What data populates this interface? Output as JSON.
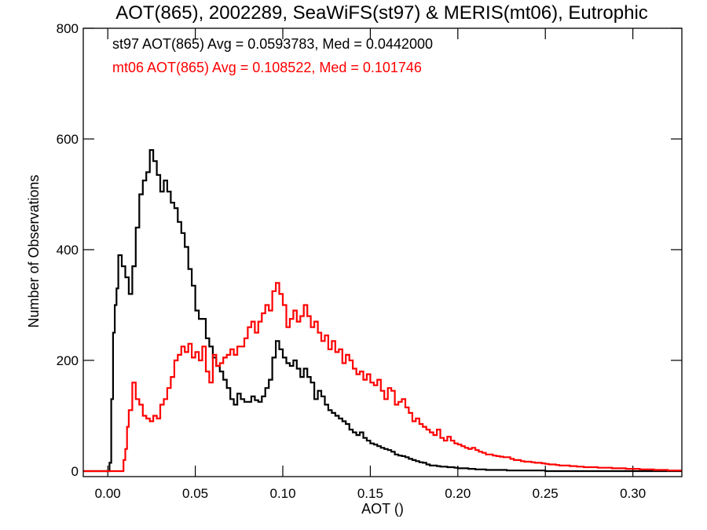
{
  "chart_data": {
    "type": "line",
    "title": "AOT(865), 2002289, SeaWiFS(st97) & MERIS(mt06), Eutrophic",
    "xlabel": "AOT ()",
    "ylabel": "Number of Observations",
    "xlim": [
      -0.014,
      0.328
    ],
    "ylim": [
      -10,
      800
    ],
    "xticks": [
      0.0,
      0.05,
      0.1,
      0.15,
      0.2,
      0.25,
      0.3
    ],
    "xtick_labels": [
      "0.00",
      "0.05",
      "0.10",
      "0.15",
      "0.20",
      "0.25",
      "0.30"
    ],
    "yticks": [
      0,
      200,
      400,
      600,
      800
    ],
    "ytick_labels": [
      "0",
      "200",
      "400",
      "600",
      "800"
    ],
    "grid": false,
    "legend_position": "top-left",
    "series": [
      {
        "name": "st97",
        "legend_text": "st97 AOT(865) Avg = 0.0593783, Med = 0.0442000",
        "color": "#000000",
        "points": [
          [
            -0.014,
            0
          ],
          [
            0.0,
            0
          ],
          [
            0.001,
            15
          ],
          [
            0.002,
            130
          ],
          [
            0.003,
            250
          ],
          [
            0.004,
            300
          ],
          [
            0.005,
            330
          ],
          [
            0.006,
            390
          ],
          [
            0.008,
            370
          ],
          [
            0.01,
            350
          ],
          [
            0.012,
            320
          ],
          [
            0.014,
            370
          ],
          [
            0.016,
            440
          ],
          [
            0.018,
            500
          ],
          [
            0.02,
            525
          ],
          [
            0.022,
            540
          ],
          [
            0.024,
            580
          ],
          [
            0.026,
            560
          ],
          [
            0.028,
            535
          ],
          [
            0.03,
            505
          ],
          [
            0.032,
            525
          ],
          [
            0.034,
            505
          ],
          [
            0.036,
            485
          ],
          [
            0.038,
            475
          ],
          [
            0.04,
            450
          ],
          [
            0.042,
            430
          ],
          [
            0.044,
            405
          ],
          [
            0.046,
            365
          ],
          [
            0.048,
            335
          ],
          [
            0.05,
            290
          ],
          [
            0.052,
            275
          ],
          [
            0.054,
            275
          ],
          [
            0.056,
            240
          ],
          [
            0.058,
            225
          ],
          [
            0.06,
            205
          ],
          [
            0.062,
            190
          ],
          [
            0.064,
            180
          ],
          [
            0.066,
            165
          ],
          [
            0.068,
            150
          ],
          [
            0.07,
            130
          ],
          [
            0.072,
            120
          ],
          [
            0.074,
            140
          ],
          [
            0.076,
            130
          ],
          [
            0.078,
            125
          ],
          [
            0.08,
            125
          ],
          [
            0.082,
            135
          ],
          [
            0.084,
            128
          ],
          [
            0.086,
            125
          ],
          [
            0.088,
            135
          ],
          [
            0.09,
            150
          ],
          [
            0.092,
            165
          ],
          [
            0.094,
            205
          ],
          [
            0.096,
            235
          ],
          [
            0.098,
            220
          ],
          [
            0.1,
            205
          ],
          [
            0.102,
            195
          ],
          [
            0.104,
            190
          ],
          [
            0.106,
            200
          ],
          [
            0.108,
            185
          ],
          [
            0.11,
            170
          ],
          [
            0.112,
            185
          ],
          [
            0.114,
            170
          ],
          [
            0.116,
            160
          ],
          [
            0.118,
            130
          ],
          [
            0.12,
            145
          ],
          [
            0.122,
            135
          ],
          [
            0.124,
            120
          ],
          [
            0.126,
            110
          ],
          [
            0.128,
            105
          ],
          [
            0.13,
            100
          ],
          [
            0.132,
            95
          ],
          [
            0.134,
            90
          ],
          [
            0.136,
            85
          ],
          [
            0.138,
            75
          ],
          [
            0.14,
            70
          ],
          [
            0.142,
            65
          ],
          [
            0.144,
            70
          ],
          [
            0.146,
            60
          ],
          [
            0.148,
            55
          ],
          [
            0.15,
            50
          ],
          [
            0.152,
            48
          ],
          [
            0.154,
            45
          ],
          [
            0.156,
            42
          ],
          [
            0.158,
            40
          ],
          [
            0.16,
            38
          ],
          [
            0.162,
            35
          ],
          [
            0.164,
            30
          ],
          [
            0.166,
            28
          ],
          [
            0.168,
            27
          ],
          [
            0.17,
            25
          ],
          [
            0.172,
            22
          ],
          [
            0.174,
            20
          ],
          [
            0.176,
            18
          ],
          [
            0.178,
            16
          ],
          [
            0.18,
            15
          ],
          [
            0.182,
            12
          ],
          [
            0.184,
            10
          ],
          [
            0.186,
            10
          ],
          [
            0.188,
            9
          ],
          [
            0.19,
            8
          ],
          [
            0.192,
            8
          ],
          [
            0.194,
            7
          ],
          [
            0.196,
            7
          ],
          [
            0.198,
            6
          ],
          [
            0.2,
            5
          ],
          [
            0.202,
            5
          ],
          [
            0.204,
            5
          ],
          [
            0.206,
            4
          ],
          [
            0.208,
            4
          ],
          [
            0.21,
            3
          ],
          [
            0.212,
            3
          ],
          [
            0.214,
            3
          ],
          [
            0.216,
            2
          ],
          [
            0.218,
            2
          ],
          [
            0.22,
            2
          ],
          [
            0.224,
            2
          ],
          [
            0.228,
            1
          ],
          [
            0.232,
            1
          ],
          [
            0.236,
            1
          ],
          [
            0.24,
            1
          ],
          [
            0.25,
            0
          ],
          [
            0.328,
            0
          ]
        ]
      },
      {
        "name": "mt06",
        "legend_text": "mt06 AOT(865) Avg = 0.108522, Med = 0.101746",
        "color": "#ff0000",
        "points": [
          [
            -0.014,
            0
          ],
          [
            0.008,
            0
          ],
          [
            0.009,
            20
          ],
          [
            0.01,
            40
          ],
          [
            0.011,
            80
          ],
          [
            0.012,
            110
          ],
          [
            0.014,
            160
          ],
          [
            0.016,
            130
          ],
          [
            0.018,
            120
          ],
          [
            0.02,
            100
          ],
          [
            0.022,
            95
          ],
          [
            0.024,
            90
          ],
          [
            0.026,
            100
          ],
          [
            0.028,
            95
          ],
          [
            0.03,
            120
          ],
          [
            0.032,
            130
          ],
          [
            0.034,
            150
          ],
          [
            0.036,
            170
          ],
          [
            0.038,
            200
          ],
          [
            0.04,
            210
          ],
          [
            0.042,
            225
          ],
          [
            0.044,
            215
          ],
          [
            0.046,
            230
          ],
          [
            0.048,
            205
          ],
          [
            0.05,
            215
          ],
          [
            0.052,
            200
          ],
          [
            0.054,
            225
          ],
          [
            0.056,
            180
          ],
          [
            0.058,
            160
          ],
          [
            0.06,
            210
          ],
          [
            0.062,
            190
          ],
          [
            0.064,
            195
          ],
          [
            0.066,
            205
          ],
          [
            0.068,
            210
          ],
          [
            0.07,
            220
          ],
          [
            0.072,
            210
          ],
          [
            0.074,
            225
          ],
          [
            0.076,
            225
          ],
          [
            0.078,
            240
          ],
          [
            0.08,
            260
          ],
          [
            0.082,
            270
          ],
          [
            0.084,
            250
          ],
          [
            0.086,
            270
          ],
          [
            0.088,
            285
          ],
          [
            0.09,
            300
          ],
          [
            0.092,
            290
          ],
          [
            0.094,
            325
          ],
          [
            0.096,
            340
          ],
          [
            0.098,
            320
          ],
          [
            0.1,
            300
          ],
          [
            0.102,
            260
          ],
          [
            0.104,
            275
          ],
          [
            0.106,
            290
          ],
          [
            0.108,
            270
          ],
          [
            0.11,
            280
          ],
          [
            0.112,
            300
          ],
          [
            0.114,
            280
          ],
          [
            0.116,
            260
          ],
          [
            0.118,
            270
          ],
          [
            0.12,
            250
          ],
          [
            0.122,
            235
          ],
          [
            0.124,
            245
          ],
          [
            0.126,
            220
          ],
          [
            0.128,
            235
          ],
          [
            0.13,
            215
          ],
          [
            0.132,
            220
          ],
          [
            0.134,
            195
          ],
          [
            0.136,
            210
          ],
          [
            0.138,
            200
          ],
          [
            0.14,
            185
          ],
          [
            0.142,
            175
          ],
          [
            0.144,
            180
          ],
          [
            0.146,
            165
          ],
          [
            0.148,
            175
          ],
          [
            0.15,
            160
          ],
          [
            0.152,
            155
          ],
          [
            0.154,
            165
          ],
          [
            0.156,
            145
          ],
          [
            0.158,
            130
          ],
          [
            0.16,
            150
          ],
          [
            0.162,
            145
          ],
          [
            0.164,
            120
          ],
          [
            0.166,
            125
          ],
          [
            0.168,
            130
          ],
          [
            0.17,
            115
          ],
          [
            0.172,
            105
          ],
          [
            0.174,
            90
          ],
          [
            0.176,
            95
          ],
          [
            0.178,
            85
          ],
          [
            0.18,
            80
          ],
          [
            0.182,
            75
          ],
          [
            0.184,
            70
          ],
          [
            0.186,
            65
          ],
          [
            0.188,
            75
          ],
          [
            0.19,
            60
          ],
          [
            0.192,
            55
          ],
          [
            0.194,
            62
          ],
          [
            0.196,
            55
          ],
          [
            0.198,
            50
          ],
          [
            0.2,
            48
          ],
          [
            0.202,
            45
          ],
          [
            0.204,
            42
          ],
          [
            0.206,
            40
          ],
          [
            0.208,
            42
          ],
          [
            0.21,
            38
          ],
          [
            0.212,
            35
          ],
          [
            0.214,
            33
          ],
          [
            0.216,
            30
          ],
          [
            0.218,
            30
          ],
          [
            0.22,
            28
          ],
          [
            0.222,
            27
          ],
          [
            0.224,
            26
          ],
          [
            0.226,
            25
          ],
          [
            0.228,
            25
          ],
          [
            0.23,
            22
          ],
          [
            0.232,
            20
          ],
          [
            0.234,
            20
          ],
          [
            0.236,
            18
          ],
          [
            0.238,
            17
          ],
          [
            0.24,
            17
          ],
          [
            0.242,
            16
          ],
          [
            0.244,
            15
          ],
          [
            0.246,
            15
          ],
          [
            0.248,
            14
          ],
          [
            0.25,
            13
          ],
          [
            0.252,
            12
          ],
          [
            0.254,
            12
          ],
          [
            0.256,
            11
          ],
          [
            0.258,
            10
          ],
          [
            0.26,
            10
          ],
          [
            0.264,
            9
          ],
          [
            0.268,
            8
          ],
          [
            0.272,
            7
          ],
          [
            0.276,
            7
          ],
          [
            0.28,
            6
          ],
          [
            0.284,
            6
          ],
          [
            0.288,
            5
          ],
          [
            0.292,
            5
          ],
          [
            0.296,
            4
          ],
          [
            0.3,
            4
          ],
          [
            0.304,
            3
          ],
          [
            0.308,
            3
          ],
          [
            0.312,
            2
          ],
          [
            0.316,
            2
          ],
          [
            0.32,
            1
          ],
          [
            0.324,
            1
          ],
          [
            0.328,
            1
          ]
        ]
      }
    ]
  }
}
